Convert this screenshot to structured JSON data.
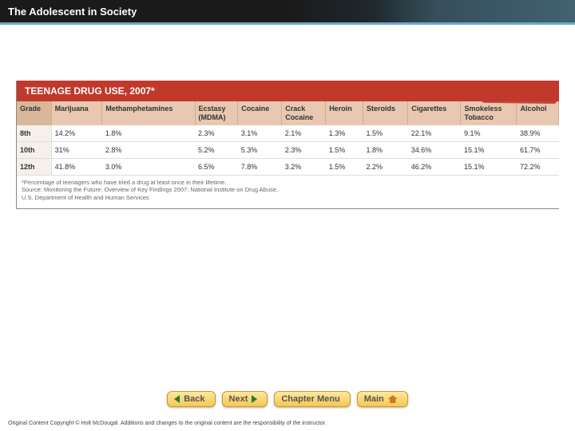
{
  "header": {
    "title": "The Adolescent in Society"
  },
  "table": {
    "banner_title": "TEENAGE DRUG USE, 2007*",
    "columns": [
      "Grade",
      "Marijuana",
      "Methamphetamines",
      "Ecstasy (MDMA)",
      "Cocaine",
      "Crack Cocaine",
      "Heroin",
      "Steroids",
      "Cigarettes",
      "Smokeless Tobacco",
      "Alcohol"
    ],
    "rows": [
      {
        "grade": "8th",
        "cells": [
          "14.2%",
          "1.8%",
          "2.3%",
          "3.1%",
          "2.1%",
          "1.3%",
          "1.5%",
          "22.1%",
          "9.1%",
          "38.9%"
        ]
      },
      {
        "grade": "10th",
        "cells": [
          "31%",
          "2.8%",
          "5.2%",
          "5.3%",
          "2.3%",
          "1.5%",
          "1.8%",
          "34.6%",
          "15.1%",
          "61.7%"
        ]
      },
      {
        "grade": "12th",
        "cells": [
          "41.8%",
          "3.0%",
          "6.5%",
          "7.8%",
          "3.2%",
          "1.5%",
          "2.2%",
          "46.2%",
          "15.1%",
          "72.2%"
        ]
      }
    ],
    "notes": [
      "*Percentage of teenagers who have tried a drug at least once in their lifetime.",
      "Source: Monitoring the Future: Overview of Key Findings 2007; National Institute on Drug Abuse,",
      "U.S. Department of Health and Human Services"
    ],
    "colors": {
      "banner_bg": "#c0392b",
      "banner_text": "#ffffff",
      "header_bg": "#e8c8b0",
      "header_first_bg": "#d8b898",
      "grade_cell_bg": "#f5f0ea",
      "border": "#888888"
    }
  },
  "nav": {
    "back": "Back",
    "next": "Next",
    "chapter_menu": "Chapter Menu",
    "main": "Main"
  },
  "footer": {
    "copyright": "Original Content Copyright © Holt McDougal. Additions and changes to the original content are the responsibility of the instructor."
  }
}
